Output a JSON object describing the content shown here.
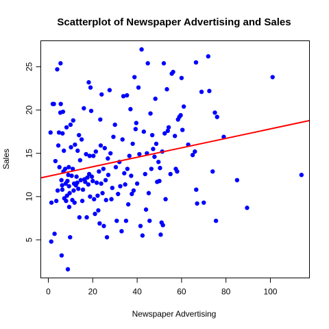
{
  "chart_data": {
    "type": "scatter",
    "title": "Scatterplot of Newspaper Advertising and Sales",
    "xlabel": "Newspaper Advertising",
    "ylabel": "Sales",
    "xlim": [
      -3.4,
      117.6
    ],
    "ylim": [
      0.6,
      28.0
    ],
    "xticks": [
      0,
      20,
      40,
      60,
      80,
      100
    ],
    "yticks": [
      5,
      10,
      15,
      20,
      25
    ],
    "grid": false,
    "legend": "none",
    "point_color": "#0000ff",
    "line_color": "#ff0000",
    "regression_line": {
      "intercept": 12.35,
      "slope": 0.0547
    },
    "points": [
      [
        1.0,
        17.4
      ],
      [
        1.3,
        4.8
      ],
      [
        1.4,
        9.3
      ],
      [
        2.0,
        20.7
      ],
      [
        2.5,
        20.7
      ],
      [
        2.8,
        5.7
      ],
      [
        3.2,
        14.1
      ],
      [
        3.6,
        9.5
      ],
      [
        4.0,
        24.7
      ],
      [
        4.2,
        10.7
      ],
      [
        4.5,
        15.9
      ],
      [
        4.8,
        17.4
      ],
      [
        5.0,
        13.4
      ],
      [
        5.4,
        19.7
      ],
      [
        5.5,
        25.4
      ],
      [
        5.6,
        20.7
      ],
      [
        5.9,
        11.9
      ],
      [
        6.0,
        3.2
      ],
      [
        6.2,
        11.3
      ],
      [
        6.3,
        10.8
      ],
      [
        6.4,
        17.3
      ],
      [
        6.6,
        19.8
      ],
      [
        6.8,
        12.9
      ],
      [
        7.0,
        15.3
      ],
      [
        7.2,
        9.8
      ],
      [
        7.6,
        13.2
      ],
      [
        7.8,
        11.5
      ],
      [
        8.0,
        9.5
      ],
      [
        8.2,
        18.0
      ],
      [
        8.4,
        10.1
      ],
      [
        8.6,
        11.8
      ],
      [
        8.8,
        1.6
      ],
      [
        9.0,
        12.5
      ],
      [
        9.2,
        13.4
      ],
      [
        9.3,
        11.2
      ],
      [
        9.4,
        8.8
      ],
      [
        9.6,
        10.4
      ],
      [
        9.8,
        5.3
      ],
      [
        10.0,
        18.3
      ],
      [
        10.2,
        15.7
      ],
      [
        10.5,
        12.4
      ],
      [
        10.8,
        9.6
      ],
      [
        11.0,
        13.2
      ],
      [
        11.2,
        18.8
      ],
      [
        11.4,
        10.7
      ],
      [
        11.6,
        11.5
      ],
      [
        11.8,
        9.3
      ],
      [
        12.0,
        16.0
      ],
      [
        12.4,
        11.3
      ],
      [
        12.7,
        12.3
      ],
      [
        13.0,
        11.6
      ],
      [
        13.2,
        15.3
      ],
      [
        13.5,
        10.9
      ],
      [
        13.8,
        17.1
      ],
      [
        14.0,
        7.6
      ],
      [
        14.3,
        14.2
      ],
      [
        14.6,
        11.9
      ],
      [
        15.0,
        16.6
      ],
      [
        15.3,
        9.5
      ],
      [
        15.6,
        10.8
      ],
      [
        16.0,
        20.2
      ],
      [
        16.3,
        12.0
      ],
      [
        16.6,
        11.7
      ],
      [
        17.0,
        14.9
      ],
      [
        17.3,
        7.6
      ],
      [
        17.6,
        12.2
      ],
      [
        18.0,
        11.4
      ],
      [
        18.2,
        23.2
      ],
      [
        18.4,
        12.6
      ],
      [
        18.6,
        14.7
      ],
      [
        18.8,
        10.0
      ],
      [
        19.0,
        22.6
      ],
      [
        19.3,
        19.9
      ],
      [
        19.6,
        12.3
      ],
      [
        20.0,
        11.8
      ],
      [
        20.3,
        14.7
      ],
      [
        20.6,
        9.7
      ],
      [
        21.0,
        8.0
      ],
      [
        21.4,
        15.2
      ],
      [
        21.8,
        11.6
      ],
      [
        22.2,
        10.1
      ],
      [
        22.5,
        8.4
      ],
      [
        22.8,
        12.9
      ],
      [
        23.1,
        6.9
      ],
      [
        23.4,
        18.9
      ],
      [
        23.6,
        15.9
      ],
      [
        23.8,
        11.5
      ],
      [
        24.0,
        21.8
      ],
      [
        24.4,
        10.4
      ],
      [
        24.8,
        13.2
      ],
      [
        25.0,
        6.6
      ],
      [
        25.4,
        15.6
      ],
      [
        25.8,
        11.9
      ],
      [
        26.0,
        9.6
      ],
      [
        26.4,
        5.3
      ],
      [
        26.8,
        14.4
      ],
      [
        27.0,
        12.5
      ],
      [
        27.6,
        22.3
      ],
      [
        28.0,
        15.0
      ],
      [
        28.4,
        9.7
      ],
      [
        28.8,
        11.0
      ],
      [
        29.3,
        16.9
      ],
      [
        30.0,
        18.3
      ],
      [
        30.4,
        13.4
      ],
      [
        30.8,
        7.2
      ],
      [
        31.4,
        10.3
      ],
      [
        32.0,
        14.0
      ],
      [
        32.4,
        11.2
      ],
      [
        33.0,
        6.0
      ],
      [
        33.4,
        16.6
      ],
      [
        33.8,
        21.6
      ],
      [
        34.2,
        12.7
      ],
      [
        34.6,
        11.4
      ],
      [
        35.0,
        7.2
      ],
      [
        35.4,
        21.7
      ],
      [
        35.6,
        13.2
      ],
      [
        36.0,
        9.1
      ],
      [
        36.5,
        14.7
      ],
      [
        37.0,
        20.1
      ],
      [
        37.3,
        12.4
      ],
      [
        37.6,
        10.3
      ],
      [
        38.0,
        16.1
      ],
      [
        38.4,
        10.7
      ],
      [
        38.8,
        23.8
      ],
      [
        39.3,
        17.8
      ],
      [
        39.6,
        18.5
      ],
      [
        40.0,
        11.5
      ],
      [
        40.6,
        22.6
      ],
      [
        41.0,
        14.9
      ],
      [
        41.5,
        6.6
      ],
      [
        42.0,
        27.0
      ],
      [
        42.4,
        5.5
      ],
      [
        43.0,
        17.5
      ],
      [
        43.6,
        12.6
      ],
      [
        44.0,
        8.5
      ],
      [
        44.4,
        15.0
      ],
      [
        44.8,
        25.4
      ],
      [
        45.2,
        10.4
      ],
      [
        45.6,
        7.2
      ],
      [
        46.0,
        19.6
      ],
      [
        46.4,
        13.2
      ],
      [
        46.8,
        17.1
      ],
      [
        47.2,
        15.5
      ],
      [
        47.8,
        14.6
      ],
      [
        48.2,
        21.3
      ],
      [
        48.6,
        16.1
      ],
      [
        49.0,
        11.7
      ],
      [
        49.6,
        14.0
      ],
      [
        50.0,
        11.8
      ],
      [
        50.3,
        13.3
      ],
      [
        50.6,
        5.6
      ],
      [
        51.0,
        7.0
      ],
      [
        51.3,
        15.2
      ],
      [
        51.6,
        6.7
      ],
      [
        52.0,
        25.4
      ],
      [
        52.4,
        17.3
      ],
      [
        52.8,
        9.7
      ],
      [
        53.4,
        22.4
      ],
      [
        53.8,
        17.6
      ],
      [
        54.2,
        18.0
      ],
      [
        55.0,
        12.6
      ],
      [
        55.6,
        24.2
      ],
      [
        56.2,
        24.4
      ],
      [
        57.0,
        17.0
      ],
      [
        57.4,
        13.2
      ],
      [
        58.0,
        12.9
      ],
      [
        58.4,
        18.9
      ],
      [
        59.0,
        19.2
      ],
      [
        59.6,
        19.4
      ],
      [
        60.0,
        23.7
      ],
      [
        60.4,
        17.7
      ],
      [
        61.0,
        20.4
      ],
      [
        63.0,
        16.0
      ],
      [
        65.0,
        14.8
      ],
      [
        66.0,
        15.2
      ],
      [
        66.5,
        25.5
      ],
      [
        66.6,
        10.8
      ],
      [
        67.0,
        9.2
      ],
      [
        69.0,
        22.1
      ],
      [
        70.0,
        9.3
      ],
      [
        72.0,
        26.2
      ],
      [
        72.5,
        22.2
      ],
      [
        74.0,
        12.9
      ],
      [
        75.0,
        19.7
      ],
      [
        75.5,
        7.2
      ],
      [
        76.0,
        19.2
      ],
      [
        79.0,
        16.9
      ],
      [
        85.0,
        11.9
      ],
      [
        89.5,
        8.7
      ],
      [
        101.0,
        23.8
      ],
      [
        114.0,
        12.5
      ]
    ]
  }
}
